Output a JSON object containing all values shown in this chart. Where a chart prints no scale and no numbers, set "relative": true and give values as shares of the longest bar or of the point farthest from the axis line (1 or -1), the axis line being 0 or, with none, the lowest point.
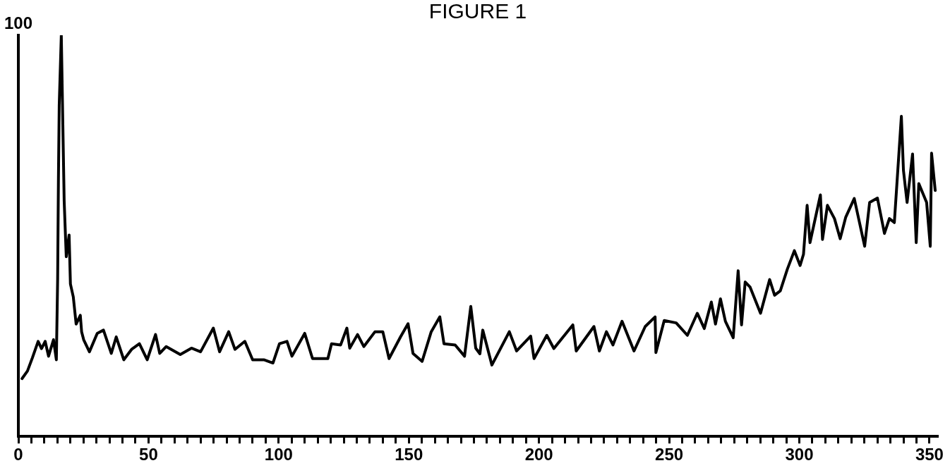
{
  "chart_data": {
    "type": "line",
    "title": "FIGURE 1",
    "relative": true,
    "color": "#000000",
    "marker": "none",
    "line_style": "solid",
    "grid": false,
    "legend": false,
    "annotations": [
      "100"
    ],
    "xlim": [
      0,
      353
    ],
    "xticks": [
      0,
      {
        "value": 5,
        "label": null
      },
      {
        "value": 10,
        "label": null
      },
      {
        "value": 15,
        "label": null
      },
      {
        "value": 20,
        "label": null
      },
      {
        "value": 25,
        "label": null
      },
      {
        "value": 30,
        "label": null
      },
      {
        "value": 35,
        "label": null
      },
      {
        "value": 40,
        "label": null
      },
      {
        "value": 45,
        "label": null
      },
      50,
      {
        "value": 55,
        "label": null
      },
      {
        "value": 60,
        "label": null
      },
      {
        "value": 65,
        "label": null
      },
      {
        "value": 70,
        "label": null
      },
      {
        "value": 75,
        "label": null
      },
      {
        "value": 80,
        "label": null
      },
      {
        "value": 85,
        "label": null
      },
      {
        "value": 90,
        "label": null
      },
      {
        "value": 95,
        "label": null
      },
      100,
      {
        "value": 105,
        "label": null
      },
      {
        "value": 110,
        "label": null
      },
      {
        "value": 115,
        "label": null
      },
      {
        "value": 120,
        "label": null
      },
      {
        "value": 125,
        "label": null
      },
      {
        "value": 130,
        "label": null
      },
      {
        "value": 135,
        "label": null
      },
      {
        "value": 140,
        "label": null
      },
      {
        "value": 145,
        "label": null
      },
      150,
      {
        "value": 155,
        "label": null
      },
      {
        "value": 160,
        "label": null
      },
      {
        "value": 165,
        "label": null
      },
      {
        "value": 170,
        "label": null
      },
      {
        "value": 175,
        "label": null
      },
      {
        "value": 180,
        "label": null
      },
      {
        "value": 185,
        "label": null
      },
      {
        "value": 190,
        "label": null
      },
      {
        "value": 195,
        "label": null
      },
      200,
      {
        "value": 205,
        "label": null
      },
      {
        "value": 210,
        "label": null
      },
      {
        "value": 215,
        "label": null
      },
      {
        "value": 220,
        "label": null
      },
      {
        "value": 225,
        "label": null
      },
      {
        "value": 230,
        "label": null
      },
      {
        "value": 235,
        "label": null
      },
      {
        "value": 240,
        "label": null
      },
      {
        "value": 245,
        "label": null
      },
      250,
      {
        "value": 255,
        "label": null
      },
      {
        "value": 260,
        "label": null
      },
      {
        "value": 265,
        "label": null
      },
      {
        "value": 270,
        "label": null
      },
      {
        "value": 275,
        "label": null
      },
      {
        "value": 280,
        "label": null
      },
      {
        "value": 285,
        "label": null
      },
      {
        "value": 290,
        "label": null
      },
      {
        "value": 295,
        "label": null
      },
      300,
      {
        "value": 305,
        "label": null
      },
      {
        "value": 310,
        "label": null
      },
      {
        "value": 315,
        "label": null
      },
      {
        "value": 320,
        "label": null
      },
      {
        "value": 325,
        "label": null
      },
      {
        "value": 330,
        "label": null
      },
      {
        "value": 335,
        "label": null
      },
      {
        "value": 340,
        "label": null
      },
      {
        "value": 345,
        "label": null
      },
      350
    ],
    "x": [
      1.4,
      3.5,
      5.4,
      7.6,
      8.9,
      10.3,
      11.6,
      13.5,
      14.6,
      15.1,
      15.4,
      15.7,
      16.5,
      17.6,
      18.4,
      19.5,
      20,
      21.1,
      22.2,
      23.8,
      24.3,
      25.1,
      27.3,
      30.3,
      32.7,
      35.7,
      37.6,
      40.5,
      43.5,
      46.5,
      49.5,
      52.7,
      54.3,
      56.8,
      62.2,
      66.5,
      70,
      74.9,
      77.3,
      80.8,
      83.2,
      87,
      90,
      94.3,
      97.8,
      100.3,
      103.2,
      105.1,
      110,
      113,
      118.9,
      120.3,
      123.8,
      126.2,
      127.3,
      130.3,
      132.7,
      137,
      140,
      142.4,
      146.8,
      149.7,
      151.6,
      155.1,
      158.6,
      161.9,
      163.5,
      167.8,
      171.4,
      173.8,
      175.7,
      177.3,
      178.4,
      181.9,
      188.6,
      191.4,
      196.8,
      198.1,
      203,
      205.7,
      213,
      214.3,
      221.1,
      223.2,
      225.9,
      228.4,
      231.9,
      236.5,
      240.8,
      244.6,
      244.9,
      248.1,
      252.7,
      257,
      260.8,
      263.5,
      266.2,
      267.8,
      269.7,
      271.6,
      274.6,
      276.5,
      277.8,
      279.2,
      281.1,
      285.1,
      288.6,
      290.5,
      292.7,
      295.4,
      298.1,
      300.3,
      301.6,
      303,
      304.1,
      308.1,
      308.9,
      310.8,
      313.5,
      315.7,
      317.8,
      321.1,
      325.1,
      327,
      330,
      332.7,
      334.6,
      336.5,
      339.2,
      340,
      341.4,
      343.5,
      344.9,
      345.9,
      348.9,
      350.3,
      350.8,
      352.2
    ],
    "values": [
      0.144,
      0.163,
      0.196,
      0.237,
      0.219,
      0.237,
      0.2,
      0.241,
      0.191,
      0.394,
      0.644,
      0.826,
      1.0,
      0.587,
      0.448,
      0.502,
      0.38,
      0.348,
      0.28,
      0.302,
      0.261,
      0.241,
      0.211,
      0.257,
      0.265,
      0.207,
      0.248,
      0.191,
      0.217,
      0.231,
      0.191,
      0.254,
      0.207,
      0.224,
      0.204,
      0.22,
      0.211,
      0.27,
      0.211,
      0.261,
      0.217,
      0.237,
      0.191,
      0.191,
      0.183,
      0.231,
      0.237,
      0.2,
      0.257,
      0.194,
      0.194,
      0.231,
      0.228,
      0.27,
      0.22,
      0.254,
      0.224,
      0.261,
      0.261,
      0.194,
      0.248,
      0.281,
      0.207,
      0.187,
      0.261,
      0.298,
      0.231,
      0.228,
      0.2,
      0.324,
      0.22,
      0.206,
      0.265,
      0.178,
      0.261,
      0.213,
      0.25,
      0.194,
      0.252,
      0.219,
      0.278,
      0.213,
      0.274,
      0.213,
      0.261,
      0.228,
      0.287,
      0.213,
      0.274,
      0.298,
      0.209,
      0.289,
      0.283,
      0.252,
      0.307,
      0.269,
      0.335,
      0.28,
      0.343,
      0.287,
      0.246,
      0.413,
      0.278,
      0.385,
      0.372,
      0.307,
      0.391,
      0.352,
      0.363,
      0.417,
      0.463,
      0.426,
      0.454,
      0.576,
      0.483,
      0.602,
      0.491,
      0.576,
      0.543,
      0.493,
      0.546,
      0.593,
      0.474,
      0.583,
      0.594,
      0.506,
      0.543,
      0.533,
      0.798,
      0.663,
      0.583,
      0.704,
      0.483,
      0.63,
      0.583,
      0.474,
      0.706,
      0.613
    ]
  }
}
